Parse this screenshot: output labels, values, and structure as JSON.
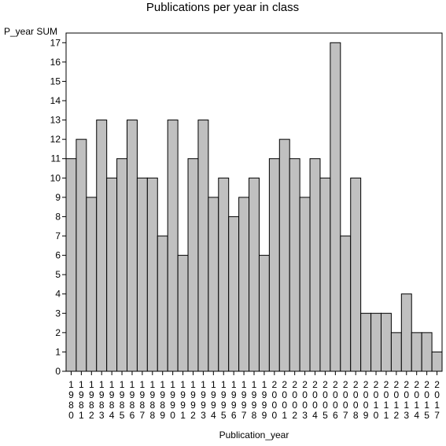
{
  "chart_data": {
    "type": "bar",
    "title": "Publications per year in class",
    "ylabel": "P_year SUM",
    "xlabel": "Publication_year",
    "ylim": [
      0,
      17.5
    ],
    "yticks": [
      0,
      1,
      2,
      3,
      4,
      5,
      6,
      7,
      8,
      9,
      10,
      11,
      12,
      13,
      14,
      15,
      16,
      17
    ],
    "grid": false,
    "legend": "none",
    "bar_color": "#c0c0c0",
    "categories": [
      "1980",
      "1981",
      "1982",
      "1983",
      "1984",
      "1985",
      "1986",
      "1987",
      "1988",
      "1989",
      "1990",
      "1991",
      "1992",
      "1993",
      "1994",
      "1995",
      "1996",
      "1997",
      "1998",
      "1999",
      "2000",
      "2001",
      "2002",
      "2003",
      "2004",
      "2005",
      "2006",
      "2007",
      "2008",
      "2009",
      "2010",
      "2011",
      "2012",
      "2013",
      "2014",
      "2015",
      "2017"
    ],
    "values": [
      11,
      12,
      9,
      13,
      10,
      11,
      13,
      10,
      10,
      7,
      13,
      6,
      11,
      13,
      9,
      10,
      8,
      9,
      10,
      6,
      11,
      12,
      11,
      9,
      11,
      10,
      17,
      7,
      10,
      3,
      3,
      3,
      2,
      4,
      2,
      2,
      1
    ]
  }
}
